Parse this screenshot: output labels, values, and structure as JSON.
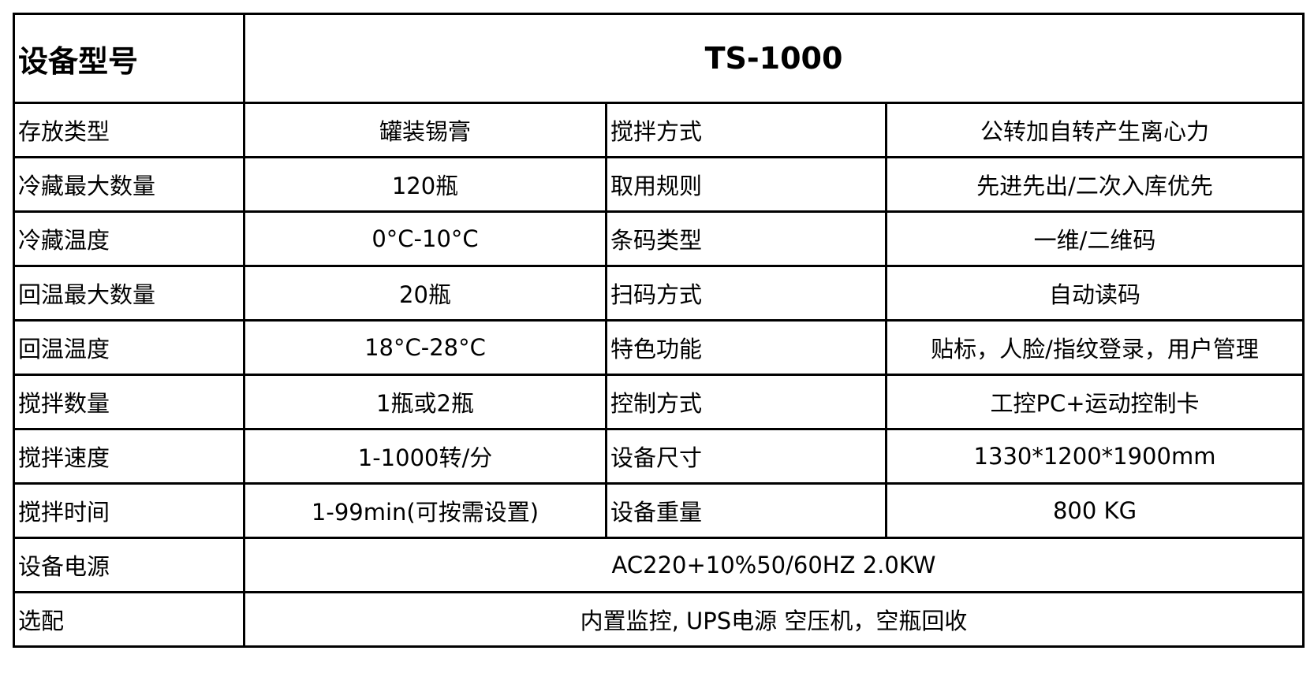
{
  "header": {
    "label": "设备型号",
    "value": "TS-1000"
  },
  "rows": [
    {
      "l1": "存放类型",
      "v1": "罐装锡膏",
      "l2": "搅拌方式",
      "v2": "公转加自转产生离心力"
    },
    {
      "l1": "冷藏最大数量",
      "v1": "120瓶",
      "l2": "取用规则",
      "v2": "先进先出/二次入库优先"
    },
    {
      "l1": "冷藏温度",
      "v1": "0°C-10°C",
      "l2": "条码类型",
      "v2": "一维/二维码"
    },
    {
      "l1": "回温最大数量",
      "v1": "20瓶",
      "l2": "扫码方式",
      "v2": "自动读码"
    },
    {
      "l1": "回温温度",
      "v1": "18°C-28°C",
      "l2": "特色功能",
      "v2": "贴标，人脸/指纹登录，用户管理"
    },
    {
      "l1": "搅拌数量",
      "v1": "1瓶或2瓶",
      "l2": "控制方式",
      "v2": "工控PC+运动控制卡"
    },
    {
      "l1": "搅拌速度",
      "v1": "1-1000转/分",
      "l2": "设备尺寸",
      "v2": "1330*1200*1900mm"
    },
    {
      "l1": "搅拌时间",
      "v1": "1-99min(可按需设置)",
      "l2": "设备重量",
      "v2": "800 KG"
    }
  ],
  "power": {
    "label": "设备电源",
    "value": "AC220+10%50/60HZ 2.0KW"
  },
  "options": {
    "label": "选配",
    "value": "内置监控, UPS电源 空压机，空瓶回收"
  }
}
